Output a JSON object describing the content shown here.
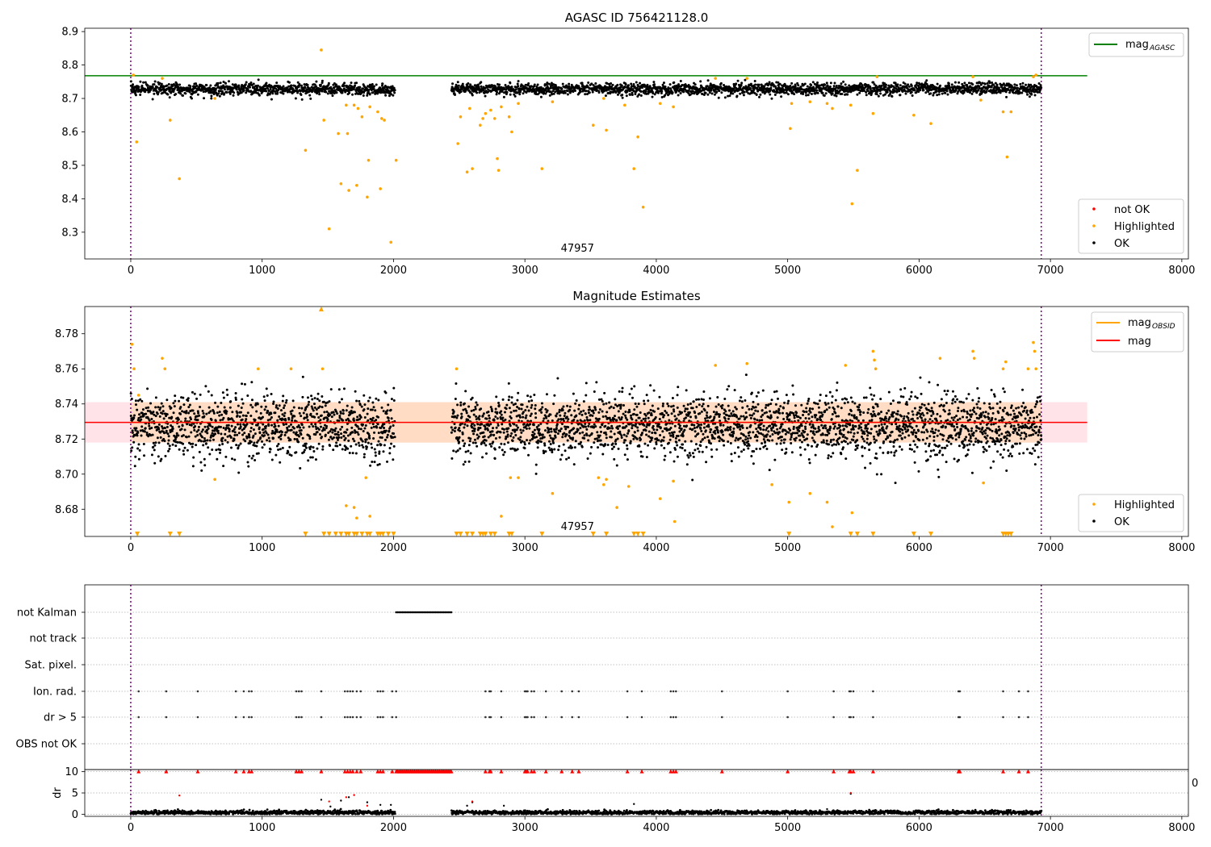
{
  "colors": {
    "ok": "#000000",
    "highlighted": "#ffa500",
    "not_ok": "#ff0000",
    "mag_agasc": "#008000",
    "mag_obsid": "#ffa500",
    "mag": "#ff0000",
    "band_fill": "#ffc0cb",
    "band_fill_inner": "#ffdab9",
    "obs_boundary": "#800080",
    "grid": "#b0b0b0"
  },
  "chart_data": [
    {
      "type": "scatter",
      "title": "AGASC ID 756421128.0",
      "annotation": "47957",
      "xlim": [
        -350,
        8050
      ],
      "ylim": [
        8.22,
        8.91
      ],
      "xticks": [
        "0",
        "1000",
        "2000",
        "3000",
        "4000",
        "5000",
        "6000",
        "7000",
        "8000"
      ],
      "yticks": [
        "8.3",
        "8.4",
        "8.5",
        "8.6",
        "8.7",
        "8.8",
        "8.9"
      ],
      "vlines": [
        0,
        6930
      ],
      "hline": {
        "name": "mag_AGASC",
        "y": 8.768,
        "x_end": 7280
      },
      "legend_lines": [
        {
          "label": "mag",
          "sub": "AGASC"
        }
      ],
      "legend_markers": [
        "not OK",
        "Highlighted",
        "OK"
      ],
      "series": [
        {
          "name": "OK",
          "segments": [
            [
              0,
              2010,
              8.728
            ],
            [
              2440,
              6930,
              8.728
            ]
          ],
          "spread": 0.009
        },
        {
          "name": "Highlighted",
          "points": [
            [
              20,
              8.77
            ],
            [
              45,
              8.57
            ],
            [
              240,
              8.76
            ],
            [
              300,
              8.635
            ],
            [
              370,
              8.46
            ],
            [
              640,
              8.7
            ],
            [
              1330,
              8.545
            ],
            [
              1450,
              8.845
            ],
            [
              1470,
              8.635
            ],
            [
              1510,
              8.31
            ],
            [
              1580,
              8.595
            ],
            [
              1600,
              8.445
            ],
            [
              1640,
              8.68
            ],
            [
              1650,
              8.595
            ],
            [
              1660,
              8.425
            ],
            [
              1700,
              8.68
            ],
            [
              1720,
              8.44
            ],
            [
              1730,
              8.67
            ],
            [
              1760,
              8.645
            ],
            [
              1800,
              8.405
            ],
            [
              1810,
              8.515
            ],
            [
              1820,
              8.675
            ],
            [
              1880,
              8.66
            ],
            [
              1900,
              8.43
            ],
            [
              1910,
              8.64
            ],
            [
              1930,
              8.635
            ],
            [
              1980,
              8.27
            ],
            [
              2020,
              8.515
            ],
            [
              2490,
              8.565
            ],
            [
              2510,
              8.645
            ],
            [
              2560,
              8.48
            ],
            [
              2580,
              8.67
            ],
            [
              2600,
              8.49
            ],
            [
              2660,
              8.62
            ],
            [
              2680,
              8.64
            ],
            [
              2700,
              8.655
            ],
            [
              2740,
              8.665
            ],
            [
              2770,
              8.64
            ],
            [
              2790,
              8.52
            ],
            [
              2800,
              8.485
            ],
            [
              2820,
              8.675
            ],
            [
              2880,
              8.645
            ],
            [
              2900,
              8.6
            ],
            [
              2950,
              8.685
            ],
            [
              3130,
              8.49
            ],
            [
              3210,
              8.69
            ],
            [
              3520,
              8.62
            ],
            [
              3600,
              8.7
            ],
            [
              3620,
              8.605
            ],
            [
              3760,
              8.68
            ],
            [
              3830,
              8.49
            ],
            [
              3860,
              8.585
            ],
            [
              3900,
              8.375
            ],
            [
              4030,
              8.685
            ],
            [
              4130,
              8.675
            ],
            [
              4450,
              8.76
            ],
            [
              4690,
              8.76
            ],
            [
              5020,
              8.61
            ],
            [
              5030,
              8.685
            ],
            [
              5170,
              8.69
            ],
            [
              5300,
              8.685
            ],
            [
              5340,
              8.67
            ],
            [
              5480,
              8.68
            ],
            [
              5490,
              8.385
            ],
            [
              5530,
              8.485
            ],
            [
              5650,
              8.655
            ],
            [
              5680,
              8.765
            ],
            [
              5960,
              8.65
            ],
            [
              6090,
              8.625
            ],
            [
              6410,
              8.765
            ],
            [
              6470,
              8.695
            ],
            [
              6640,
              8.66
            ],
            [
              6670,
              8.525
            ],
            [
              6700,
              8.66
            ],
            [
              6870,
              8.765
            ],
            [
              6890,
              8.77
            ]
          ]
        }
      ]
    },
    {
      "type": "scatter",
      "title": "Magnitude Estimates",
      "annotation": "47957",
      "xlim": [
        -350,
        8050
      ],
      "ylim": [
        8.6645,
        8.7955
      ],
      "xticks": [
        "0",
        "1000",
        "2000",
        "3000",
        "4000",
        "5000",
        "6000",
        "7000",
        "8000"
      ],
      "yticks": [
        "8.68",
        "8.70",
        "8.72",
        "8.74",
        "8.76",
        "8.78"
      ],
      "vlines": [
        0,
        6930
      ],
      "band": {
        "y0": 8.718,
        "y1": 8.741,
        "x0": -350,
        "x1": 7280
      },
      "band_inner": {
        "y0": 8.718,
        "y1": 8.741,
        "x0": 0,
        "x1": 6930
      },
      "hline": {
        "name": "mag",
        "y": 8.7295,
        "x_end": 7280
      },
      "legend_lines": [
        {
          "label": "mag",
          "sub": "OBSID"
        },
        {
          "label": "mag",
          "sub": ""
        }
      ],
      "legend_markers": [
        "Highlighted",
        "OK"
      ],
      "mag_obsid": [
        [
          0,
          2010,
          8.7295
        ],
        [
          2440,
          6930,
          8.7295
        ]
      ],
      "series": [
        {
          "name": "OK",
          "segments": [
            [
              0,
              2010,
              8.727
            ],
            [
              2440,
              6930,
              8.727
            ]
          ],
          "spread": 0.009
        },
        {
          "name": "Highlighted",
          "points": [
            [
              10,
              8.774
            ],
            [
              25,
              8.76
            ],
            [
              60,
              8.745
            ],
            [
              240,
              8.766
            ],
            [
              260,
              8.76
            ],
            [
              640,
              8.697
            ],
            [
              970,
              8.76
            ],
            [
              1220,
              8.76
            ],
            [
              1460,
              8.76
            ],
            [
              1640,
              8.682
            ],
            [
              1700,
              8.681
            ],
            [
              1720,
              8.675
            ],
            [
              1790,
              8.698
            ],
            [
              1820,
              8.676
            ],
            [
              2480,
              8.76
            ],
            [
              2820,
              8.676
            ],
            [
              2890,
              8.698
            ],
            [
              2950,
              8.698
            ],
            [
              3210,
              8.689
            ],
            [
              3560,
              8.698
            ],
            [
              3600,
              8.694
            ],
            [
              3620,
              8.697
            ],
            [
              3700,
              8.681
            ],
            [
              3790,
              8.693
            ],
            [
              4030,
              8.686
            ],
            [
              4130,
              8.696
            ],
            [
              4140,
              8.673
            ],
            [
              4450,
              8.762
            ],
            [
              4690,
              8.763
            ],
            [
              4880,
              8.694
            ],
            [
              5010,
              8.684
            ],
            [
              5170,
              8.689
            ],
            [
              5300,
              8.684
            ],
            [
              5340,
              8.67
            ],
            [
              5440,
              8.762
            ],
            [
              5490,
              8.678
            ],
            [
              5650,
              8.77
            ],
            [
              5660,
              8.765
            ],
            [
              5670,
              8.76
            ],
            [
              6160,
              8.766
            ],
            [
              6410,
              8.77
            ],
            [
              6420,
              8.766
            ],
            [
              6490,
              8.695
            ],
            [
              6640,
              8.76
            ],
            [
              6660,
              8.764
            ],
            [
              6830,
              8.76
            ],
            [
              6870,
              8.775
            ],
            [
              6880,
              8.77
            ],
            [
              6890,
              8.76
            ]
          ]
        },
        {
          "name": "Highlighted (clipped high)",
          "points": [
            [
              1450,
              8.7955
            ]
          ]
        },
        {
          "name": "Highlighted (clipped low)",
          "x": [
            50,
            300,
            370,
            1330,
            1470,
            1510,
            1560,
            1600,
            1640,
            1660,
            1700,
            1720,
            1760,
            1800,
            1820,
            1880,
            1900,
            1920,
            1960,
            2000,
            2480,
            2510,
            2560,
            2600,
            2660,
            2680,
            2700,
            2740,
            2770,
            2880,
            2900,
            3130,
            3520,
            3620,
            3830,
            3860,
            3900,
            5010,
            5480,
            5530,
            5650,
            5960,
            6090,
            6640,
            6660,
            6680,
            6700
          ]
        }
      ]
    },
    {
      "type": "scatter",
      "title": "",
      "xlim": [
        -350,
        8050
      ],
      "xticks": [
        "0",
        "1000",
        "2000",
        "3000",
        "4000",
        "5000",
        "6000",
        "7000",
        "8000"
      ],
      "vlines": [
        0,
        6930
      ],
      "flag_rows": [
        "not Kalman",
        "not track",
        "Sat. pixel.",
        "Ion. rad.",
        "dr > 5",
        "OBS not OK"
      ],
      "flags": {
        "not Kalman": {
          "ranges": [
            [
              2020,
              2440
            ]
          ]
        },
        "not track": {
          "x": []
        },
        "Sat. pixel.": {
          "x": []
        },
        "Ion. rad.": {
          "x": [
            60,
            270,
            510,
            800,
            860,
            900,
            920,
            1260,
            1280,
            1300,
            1450,
            1630,
            1650,
            1670,
            1690,
            1720,
            1750,
            1880,
            1900,
            1920,
            1990,
            2020,
            2700,
            2730,
            2740,
            2820,
            3000,
            3010,
            3020,
            3050,
            3070,
            3160,
            3280,
            3360,
            3410,
            3780,
            3890,
            4110,
            4130,
            4150,
            4500,
            5000,
            5350,
            5470,
            5480,
            5500,
            5650,
            6300,
            6310,
            6640,
            6760,
            6830
          ]
        },
        "dr > 5": {
          "x": [
            60,
            270,
            510,
            800,
            860,
            900,
            920,
            1260,
            1280,
            1300,
            1450,
            1630,
            1650,
            1670,
            1690,
            1720,
            1750,
            1880,
            1900,
            1920,
            1990,
            2020,
            2700,
            2730,
            2740,
            2820,
            3000,
            3010,
            3020,
            3050,
            3070,
            3160,
            3280,
            3360,
            3410,
            3780,
            3890,
            4110,
            4130,
            4150,
            4500,
            5000,
            5350,
            5470,
            5480,
            5500,
            5650,
            6300,
            6310,
            6640,
            6760,
            6830
          ]
        },
        "OBS not OK": {
          "x": []
        }
      },
      "dr_panel": {
        "ylabel": "dr",
        "ylim": [
          -0.5,
          10.5
        ],
        "yticks": [
          "0",
          "5",
          "10"
        ],
        "clip_label": "0",
        "dr_segments": [
          [
            0,
            2010,
            0.4
          ],
          [
            2440,
            6930,
            0.4
          ]
        ],
        "dr_outliers": [
          [
            1450,
            3.4
          ],
          [
            1520,
            1.8
          ],
          [
            1600,
            3.2
          ],
          [
            1660,
            4.0
          ],
          [
            1800,
            2.8
          ],
          [
            1900,
            2.2
          ],
          [
            1980,
            2.2
          ],
          [
            2560,
            2.0
          ],
          [
            2600,
            2.8
          ],
          [
            2840,
            2.0
          ],
          [
            3830,
            2.4
          ],
          [
            5480,
            4.8
          ],
          [
            5300,
            1.2
          ],
          [
            6680,
            1.0
          ]
        ],
        "red_clipped_x": [
          60,
          270,
          510,
          800,
          860,
          900,
          920,
          1260,
          1280,
          1300,
          1450,
          1630,
          1650,
          1670,
          1690,
          1720,
          1750,
          1880,
          1900,
          1920,
          1990,
          2700,
          2730,
          2740,
          2820,
          3000,
          3010,
          3020,
          3050,
          3070,
          3160,
          3280,
          3360,
          3410,
          3780,
          3890,
          4110,
          4130,
          4150,
          4500,
          5000,
          5350,
          5470,
          5480,
          5500,
          5650,
          6300,
          6310,
          6640,
          6760,
          6830
        ],
        "red_clipped_range": [
          2020,
          2440
        ],
        "red_small": [
          [
            370,
            4.4
          ],
          [
            1510,
            3.0
          ],
          [
            1640,
            4.0
          ],
          [
            1700,
            4.5
          ],
          [
            1800,
            2.0
          ],
          [
            2600,
            3.0
          ],
          [
            5480,
            5.0
          ]
        ]
      }
    }
  ]
}
